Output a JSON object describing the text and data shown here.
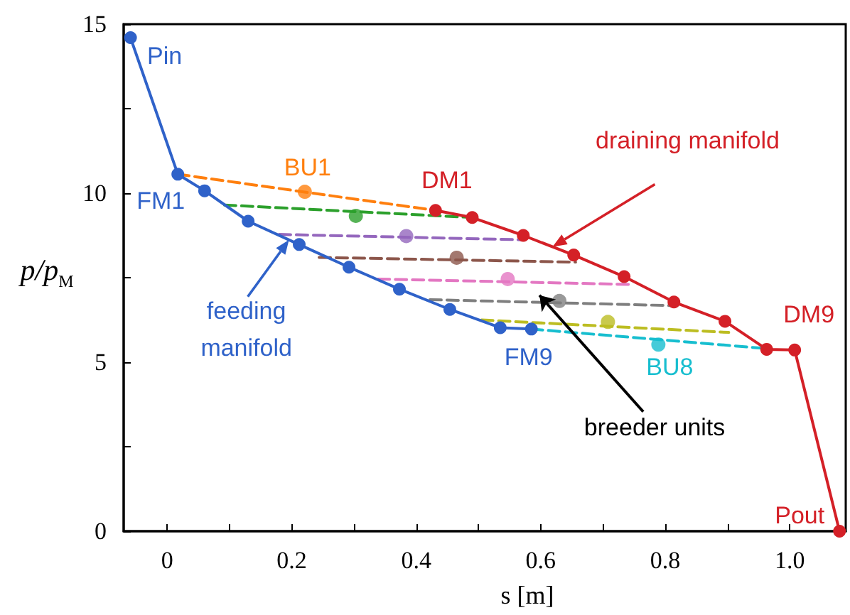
{
  "chart_data": {
    "type": "line",
    "xlabel": "s [m]",
    "ylabel": "p/p$_{M}$",
    "xlim": [
      -0.07,
      1.09
    ],
    "ylim": [
      0,
      15
    ],
    "xticks": [
      0,
      {
        "value": 0.1,
        "label": null
      },
      0.2,
      {
        "value": 0.3,
        "label": null
      },
      0.4,
      {
        "value": 0.5,
        "label": null
      },
      0.6,
      {
        "value": 0.7,
        "label": null
      },
      0.8,
      {
        "value": 0.9,
        "label": null
      },
      {
        "value": 1,
        "label": "1.0"
      }
    ],
    "yticks": [
      0,
      {
        "value": 2.5,
        "label": null
      },
      5,
      {
        "value": 7.5,
        "label": null
      },
      10,
      {
        "value": 12.5,
        "label": null
      },
      15
    ],
    "series": [
      {
        "name": "feeding manifold",
        "color": "#2f62c9",
        "marker": "circle",
        "line_style": "solid",
        "x": [
          -0.059,
          0.017,
          0.06,
          0.13,
          0.212,
          0.292,
          0.373,
          0.454,
          0.535,
          0.585
        ],
        "values": [
          14.6,
          10.56,
          10.07,
          9.17,
          8.48,
          7.81,
          7.16,
          6.56,
          6.02,
          5.98
        ]
      },
      {
        "name": "draining manifold",
        "color": "#d42027",
        "marker": "circle",
        "line_style": "solid",
        "x": [
          0.431,
          0.49,
          0.572,
          0.653,
          0.734,
          0.814,
          0.896,
          0.963,
          1.008,
          1.08
        ],
        "values": [
          9.49,
          9.28,
          8.75,
          8.17,
          7.53,
          6.78,
          6.21,
          5.38,
          5.36,
          0
        ]
      },
      {
        "color": "#ff7f0e",
        "marker": "none",
        "line_style": "dashed",
        "x": [
          0.017,
          0.431
        ],
        "values": [
          10.56,
          9.49
        ]
      },
      {
        "color": "#2ca02c",
        "marker": "none",
        "line_style": "dashed",
        "x": [
          0.092,
          0.49
        ],
        "values": [
          9.65,
          9.28
        ]
      },
      {
        "color": "#9467bd",
        "marker": "none",
        "line_style": "dashed",
        "x": [
          0.18,
          0.572
        ],
        "values": [
          8.78,
          8.62
        ]
      },
      {
        "color": "#8c564b",
        "marker": "none",
        "line_style": "dashed",
        "x": [
          0.244,
          0.656
        ],
        "values": [
          8.1,
          7.96
        ]
      },
      {
        "color": "#e377c2",
        "marker": "none",
        "line_style": "dashed",
        "x": [
          0.339,
          0.743
        ],
        "values": [
          7.46,
          7.3
        ]
      },
      {
        "color": "#7f7f7f",
        "marker": "none",
        "line_style": "dashed",
        "x": [
          0.422,
          0.819
        ],
        "values": [
          6.85,
          6.67
        ]
      },
      {
        "color": "#bcbd22",
        "marker": "none",
        "line_style": "dashed",
        "x": [
          0.505,
          0.902
        ],
        "values": [
          6.25,
          5.88
        ]
      },
      {
        "color": "#17becf",
        "marker": "none",
        "line_style": "dashed",
        "x": [
          0.585,
          0.952
        ],
        "values": [
          5.98,
          5.42
        ]
      },
      {
        "type": "scatter",
        "marker": "circle",
        "x": [
          0.221,
          0.303,
          0.384,
          0.465,
          0.547,
          0.63,
          0.708,
          0.789
        ],
        "values": [
          10.04,
          9.33,
          8.73,
          8.09,
          7.46,
          6.81,
          6.19,
          5.52
        ],
        "colors": [
          "#ff7f0e",
          "#2ca02c",
          "#9467bd",
          "#8c564b",
          "#e377c2",
          "#7f7f7f",
          "#bcbd22",
          "#17becf"
        ]
      }
    ],
    "annotations": [
      {
        "text": "Pin",
        "x": -0.059,
        "y": 14.6
      },
      {
        "text": "FM1",
        "x": 0.017,
        "y": 10.56
      },
      {
        "text": "FM9",
        "x": 0.585,
        "y": 5.98
      },
      {
        "text": "DM1",
        "x": 0.431,
        "y": 9.49
      },
      {
        "text": "DM9",
        "x": 1.008,
        "y": 5.36
      },
      {
        "text": "Pout",
        "x": 1.08,
        "y": 0
      },
      {
        "text": "BU1",
        "x": 0.221,
        "y": 10.04
      },
      {
        "text": "BU8",
        "x": 0.789,
        "y": 5.52
      },
      {
        "text": "breeder units",
        "x": 0.598,
        "y": 6.98
      }
    ]
  }
}
